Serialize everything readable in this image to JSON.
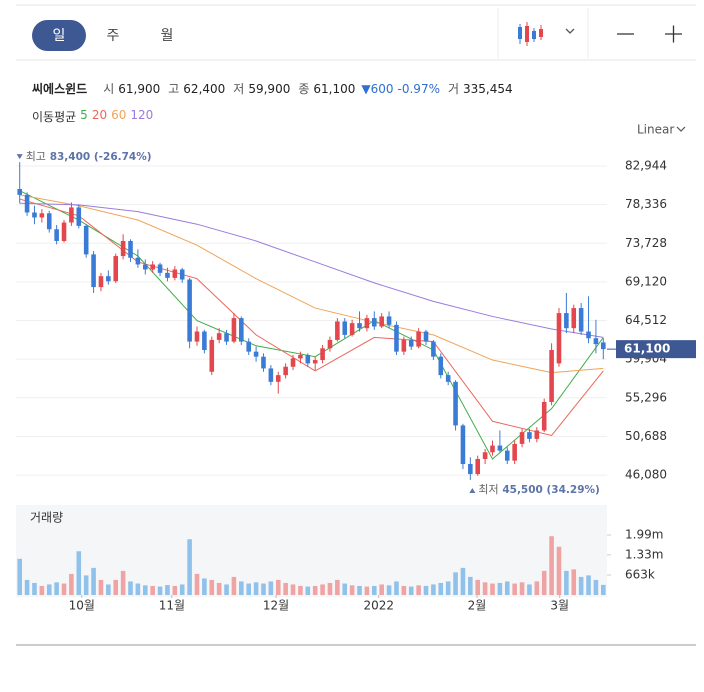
{
  "toolbar": {
    "tabs": [
      "일",
      "주",
      "월"
    ],
    "selected": 0
  },
  "quote": {
    "name": "씨에스윈드",
    "items": [
      {
        "label": "시",
        "value": "61,900"
      },
      {
        "label": "고",
        "value": "62,400"
      },
      {
        "label": "저",
        "value": "59,900"
      },
      {
        "label": "종",
        "value": "61,100"
      }
    ],
    "change": "▼600",
    "change_pct": "-0.97%",
    "volume_label": "거",
    "volume": "335,454"
  },
  "chart_data": {
    "type": "candlestick",
    "scale_label": "Linear",
    "ma_label": "이동평균",
    "up_color": "#e3464c",
    "down_color": "#3a7bd5",
    "xlim": [
      -0.5,
      79.5
    ],
    "xticks": [
      {
        "value": 8.4,
        "label": "10월"
      },
      {
        "value": 20.6,
        "label": "11월"
      },
      {
        "value": 34.7,
        "label": "12월"
      },
      {
        "value": 48.6,
        "label": "2022"
      },
      {
        "value": 61.9,
        "label": "2월"
      },
      {
        "value": 73.1,
        "label": "3월"
      }
    ],
    "ylim": [
      44300,
      84850
    ],
    "yticks": [
      {
        "value": 82944,
        "label": "82,944"
      },
      {
        "value": 78336,
        "label": "78,336"
      },
      {
        "value": 73728,
        "label": "73,728"
      },
      {
        "value": 69120,
        "label": "69,120"
      },
      {
        "value": 64512,
        "label": "64,512"
      },
      {
        "value": 59904,
        "label": "59,904"
      },
      {
        "value": 55296,
        "label": "55,296"
      },
      {
        "value": 50688,
        "label": "50,688"
      },
      {
        "value": 46080,
        "label": "46,080"
      }
    ],
    "grid": true,
    "last_price": {
      "value": 61100,
      "label": "61,100"
    },
    "high_note": {
      "label": "최고",
      "text": "83,400 (-26.74%)"
    },
    "low_note": {
      "label": "최저",
      "text": "45,500 (34.29%)"
    },
    "candles": [
      [
        80200,
        83400,
        78500,
        79500
      ],
      [
        79500,
        79800,
        77000,
        77400
      ],
      [
        77400,
        78200,
        76000,
        76800
      ],
      [
        76800,
        77800,
        76200,
        77300
      ],
      [
        77300,
        77600,
        75000,
        75400
      ],
      [
        75400,
        75900,
        73600,
        74000
      ],
      [
        74000,
        76500,
        73800,
        76200
      ],
      [
        76200,
        78600,
        75800,
        78000
      ],
      [
        78000,
        78300,
        75500,
        75800
      ],
      [
        75800,
        76000,
        72000,
        72400
      ],
      [
        72400,
        72800,
        67800,
        68500
      ],
      [
        68500,
        70200,
        68000,
        69800
      ],
      [
        69800,
        70500,
        68800,
        69200
      ],
      [
        69200,
        72500,
        69000,
        72200
      ],
      [
        72200,
        74800,
        71800,
        74000
      ],
      [
        74000,
        74200,
        71500,
        72000
      ],
      [
        72000,
        73000,
        70800,
        71200
      ],
      [
        71200,
        71800,
        70000,
        70600
      ],
      [
        70600,
        71600,
        70200,
        71200
      ],
      [
        71200,
        71400,
        69800,
        70200
      ],
      [
        70200,
        70800,
        69200,
        69600
      ],
      [
        69600,
        71000,
        69300,
        70600
      ],
      [
        70600,
        70800,
        69000,
        69400
      ],
      [
        69400,
        69600,
        61200,
        62000
      ],
      [
        62000,
        63800,
        61500,
        63200
      ],
      [
        63200,
        63400,
        60600,
        61000
      ],
      [
        58400,
        62600,
        58000,
        62200
      ],
      [
        62200,
        63600,
        61800,
        63000
      ],
      [
        63000,
        63400,
        61600,
        62000
      ],
      [
        62000,
        65400,
        61800,
        64800
      ],
      [
        64800,
        65000,
        61600,
        62000
      ],
      [
        62000,
        62400,
        60400,
        60800
      ],
      [
        60800,
        61400,
        59600,
        60200
      ],
      [
        60200,
        60600,
        58400,
        58800
      ],
      [
        58800,
        59200,
        56800,
        57200
      ],
      [
        57200,
        58400,
        55800,
        58000
      ],
      [
        58000,
        59400,
        57600,
        59000
      ],
      [
        59000,
        60400,
        58600,
        60000
      ],
      [
        60000,
        60800,
        59400,
        60400
      ],
      [
        60400,
        60600,
        59000,
        59400
      ],
      [
        59400,
        60200,
        58600,
        59800
      ],
      [
        59800,
        61600,
        59400,
        61200
      ],
      [
        61200,
        62600,
        60800,
        62200
      ],
      [
        62200,
        64800,
        62000,
        64400
      ],
      [
        64400,
        64800,
        62400,
        62800
      ],
      [
        62800,
        64600,
        62600,
        64200
      ],
      [
        64200,
        65600,
        63200,
        63600
      ],
      [
        63600,
        65200,
        63200,
        64800
      ],
      [
        64800,
        65600,
        63400,
        63800
      ],
      [
        63800,
        65400,
        63600,
        65000
      ],
      [
        65000,
        65600,
        63600,
        64000
      ],
      [
        64000,
        64400,
        60400,
        60800
      ],
      [
        60800,
        62600,
        60400,
        62200
      ],
      [
        62200,
        62600,
        61000,
        61400
      ],
      [
        61400,
        63600,
        61200,
        63200
      ],
      [
        63200,
        63400,
        61600,
        62000
      ],
      [
        62000,
        62200,
        59800,
        60200
      ],
      [
        60200,
        60600,
        57600,
        58000
      ],
      [
        58000,
        58400,
        56800,
        57200
      ],
      [
        57200,
        57400,
        51400,
        52000
      ],
      [
        52000,
        52200,
        46800,
        47400
      ],
      [
        47400,
        48200,
        45500,
        46200
      ],
      [
        46200,
        48400,
        46000,
        48000
      ],
      [
        48000,
        49200,
        47400,
        48800
      ],
      [
        48800,
        50200,
        48400,
        49600
      ],
      [
        49600,
        51400,
        48800,
        49000
      ],
      [
        49000,
        49400,
        47400,
        47800
      ],
      [
        47800,
        50200,
        47400,
        49800
      ],
      [
        49800,
        51600,
        49400,
        51200
      ],
      [
        51200,
        51600,
        50000,
        50400
      ],
      [
        50400,
        51800,
        50000,
        51400
      ],
      [
        51400,
        55200,
        51200,
        54800
      ],
      [
        54800,
        61800,
        54400,
        61000
      ],
      [
        59400,
        66000,
        59000,
        65400
      ],
      [
        65400,
        67800,
        63000,
        63600
      ],
      [
        63600,
        66400,
        63000,
        66000
      ],
      [
        66000,
        66600,
        62800,
        63200
      ],
      [
        63200,
        67400,
        61800,
        62400
      ],
      [
        62400,
        64600,
        60600,
        61700
      ],
      [
        61900,
        62400,
        59900,
        61100
      ]
    ],
    "series": [
      {
        "name": "5",
        "color": "#3fae49",
        "x": [
          0,
          8,
          16,
          24,
          32,
          40,
          48,
          56,
          64,
          72,
          79
        ],
        "values": [
          80000,
          76500,
          72200,
          64500,
          61500,
          60200,
          64500,
          61000,
          48000,
          54000,
          62500
        ]
      },
      {
        "name": "20",
        "color": "#e8685a",
        "x": [
          0,
          8,
          16,
          24,
          32,
          40,
          48,
          56,
          64,
          72,
          79
        ],
        "values": [
          79000,
          77000,
          71500,
          69500,
          62800,
          58500,
          62500,
          62000,
          52500,
          50800,
          58500
        ]
      },
      {
        "name": "60",
        "color": "#f0a35a",
        "x": [
          0,
          8,
          16,
          24,
          32,
          40,
          48,
          56,
          64,
          72,
          79
        ],
        "values": [
          79500,
          78200,
          76500,
          73500,
          69500,
          66000,
          64300,
          62800,
          59800,
          58300,
          58800
        ]
      },
      {
        "name": "120",
        "color": "#9b7be0",
        "x": [
          0,
          8,
          16,
          24,
          32,
          40,
          48,
          56,
          64,
          72,
          79
        ],
        "values": [
          78500,
          78300,
          77500,
          76000,
          74000,
          71500,
          69000,
          66800,
          65000,
          63500,
          62500
        ]
      }
    ],
    "volume": {
      "label": "거래량",
      "up_color": "#f0a3a3",
      "down_color": "#8fc1ea",
      "ylim": [
        0,
        2985000
      ],
      "yticks": [
        {
          "value": 1990000,
          "label": "1.99m"
        },
        {
          "value": 1330000,
          "label": "1.33m"
        },
        {
          "value": 663000,
          "label": "663k"
        }
      ],
      "values": [
        1200000,
        500000,
        400000,
        300000,
        350000,
        420000,
        380000,
        700000,
        1450000,
        650000,
        900000,
        500000,
        350000,
        500000,
        800000,
        450000,
        380000,
        320000,
        300000,
        280000,
        330000,
        300000,
        350000,
        1850000,
        700000,
        550000,
        500000,
        400000,
        350000,
        600000,
        450000,
        380000,
        420000,
        380000,
        450000,
        500000,
        400000,
        350000,
        300000,
        280000,
        300000,
        350000,
        400000,
        500000,
        380000,
        320000,
        300000,
        280000,
        300000,
        350000,
        320000,
        450000,
        300000,
        280000,
        320000,
        300000,
        350000,
        400000,
        450000,
        750000,
        900000,
        600000,
        500000,
        420000,
        380000,
        400000,
        450000,
        380000,
        420000,
        350000,
        450000,
        800000,
        1950000,
        1600000,
        800000,
        850000,
        600000,
        650000,
        500000,
        335454
      ]
    }
  }
}
